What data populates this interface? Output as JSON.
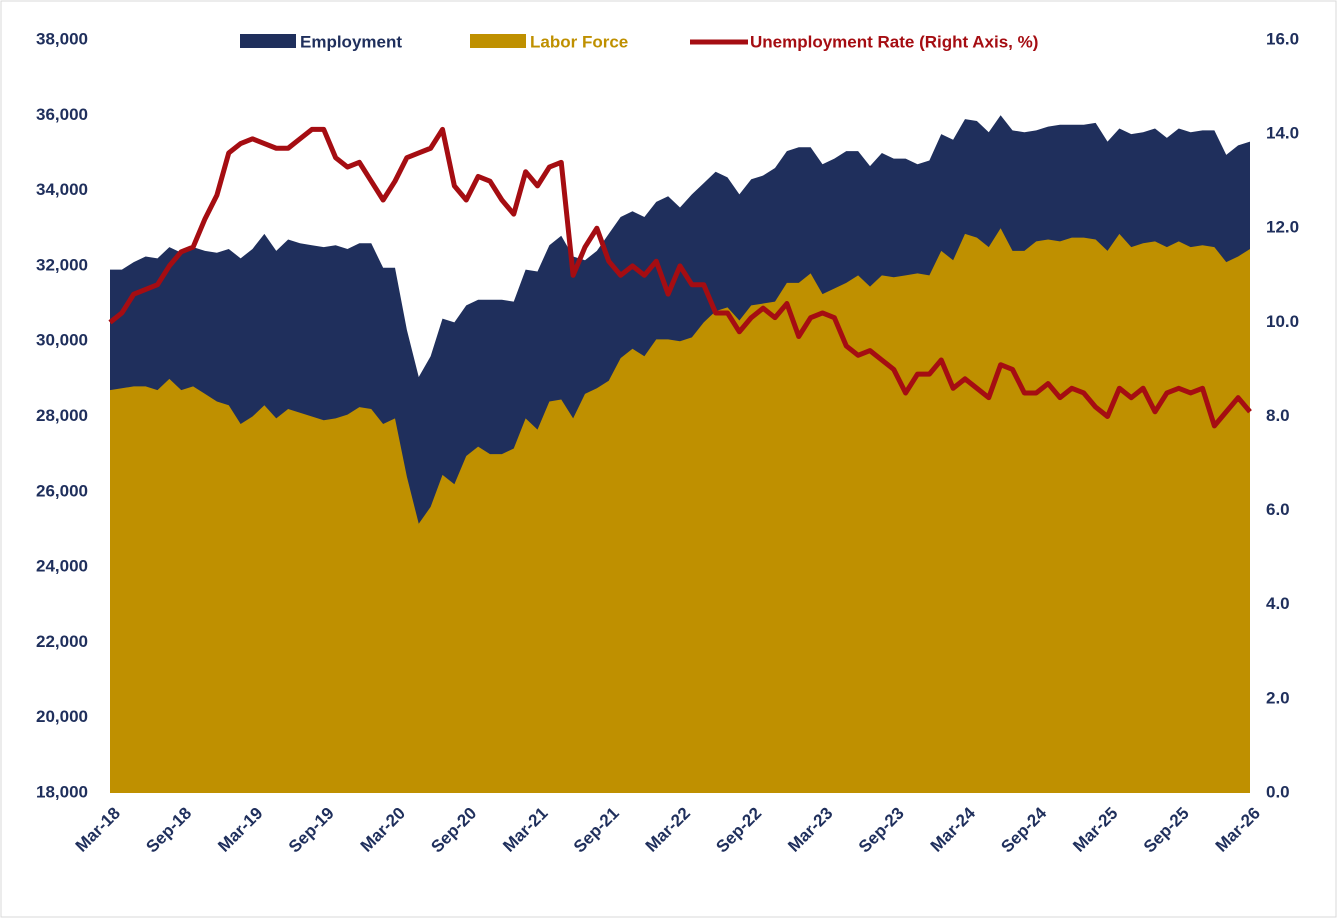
{
  "chart_data": {
    "type": "area-line",
    "categories": [
      "Mar-18",
      null,
      null,
      null,
      null,
      null,
      "Sep-18",
      null,
      null,
      null,
      null,
      null,
      "Mar-19",
      null,
      null,
      null,
      null,
      null,
      "Sep-19",
      null,
      null,
      null,
      null,
      null,
      "Mar-20",
      null,
      null,
      null,
      null,
      null,
      "Sep-20",
      null,
      null,
      null,
      null,
      null,
      "Mar-21",
      null,
      null,
      null,
      null,
      null,
      "Sep-21",
      null,
      null,
      null,
      null,
      null,
      "Mar-22",
      null,
      null,
      null,
      null,
      null,
      "Sep-22",
      null,
      null,
      null,
      null,
      null,
      "Mar-23",
      null,
      null,
      null,
      null,
      null,
      "Sep-23",
      null,
      null,
      null,
      null,
      null,
      "Mar-24",
      null,
      null,
      null,
      null,
      null,
      "Sep-24",
      null,
      null,
      null,
      null,
      null,
      "Mar-25",
      null,
      null,
      null,
      null,
      null,
      "Sep-25",
      null,
      null,
      null,
      null,
      null,
      "Mar-26"
    ],
    "series": [
      {
        "name": "Employment",
        "color": "#1f2f5c",
        "kind": "area",
        "values": [
          31900,
          31900,
          32100,
          32250,
          32200,
          32500,
          32350,
          32500,
          32400,
          32350,
          32450,
          32200,
          32450,
          32850,
          32400,
          32700,
          32600,
          32550,
          32500,
          32550,
          32450,
          32600,
          32600,
          31950,
          31950,
          30300,
          29050,
          29600,
          30600,
          30500,
          30950,
          31100,
          31100,
          31100,
          31050,
          31900,
          31850,
          32550,
          32800,
          32250,
          32150,
          32400,
          32850,
          33300,
          33450,
          33300,
          33700,
          33850,
          33550,
          33900,
          34200,
          34500,
          34350,
          33900,
          34300,
          34400,
          34600,
          35050,
          35150,
          35150,
          34700,
          34850,
          35050,
          35050,
          34650,
          35000,
          34850,
          34850,
          34700,
          34800,
          35500,
          35350,
          35900,
          35850,
          35550,
          36000,
          35600,
          35550,
          35600,
          35700,
          35750,
          35750,
          35750,
          35800,
          35300,
          35650,
          35500,
          35550,
          35650,
          35400,
          35650,
          35550,
          35600,
          35600,
          34950,
          35200,
          35300
        ]
      },
      {
        "name": "Labor Force",
        "color": "#bf9000",
        "kind": "area",
        "values": [
          28700,
          28750,
          28800,
          28800,
          28700,
          29000,
          28700,
          28800,
          28600,
          28400,
          28300,
          27800,
          28000,
          28300,
          27950,
          28200,
          28100,
          28000,
          27900,
          27950,
          28050,
          28250,
          28200,
          27800,
          27950,
          26400,
          25150,
          25600,
          26450,
          26200,
          26950,
          27200,
          27000,
          27000,
          27150,
          27950,
          27650,
          28400,
          28450,
          27950,
          28600,
          28750,
          28950,
          29550,
          29800,
          29600,
          30050,
          30050,
          30000,
          30100,
          30500,
          30800,
          30900,
          30550,
          30950,
          31000,
          31050,
          31550,
          31550,
          31800,
          31250,
          31400,
          31550,
          31750,
          31450,
          31750,
          31700,
          31750,
          31800,
          31750,
          32400,
          32150,
          32850,
          32750,
          32500,
          33000,
          32400,
          32400,
          32650,
          32700,
          32650,
          32750,
          32750,
          32700,
          32400,
          32850,
          32500,
          32600,
          32650,
          32500,
          32650,
          32500,
          32550,
          32500,
          32100,
          32250,
          32450
        ]
      },
      {
        "name": "Unemployment Rate (Right Axis, %)",
        "color": "#a50d12",
        "kind": "line",
        "axis": "y2",
        "values": [
          10.0,
          10.2,
          10.6,
          10.7,
          10.8,
          11.2,
          11.5,
          11.6,
          12.2,
          12.7,
          13.6,
          13.8,
          13.9,
          13.8,
          13.7,
          13.7,
          13.9,
          14.1,
          14.1,
          13.5,
          13.3,
          13.4,
          13.0,
          12.6,
          13.0,
          13.5,
          13.6,
          13.7,
          14.1,
          12.9,
          12.6,
          13.1,
          13.0,
          12.6,
          12.3,
          13.2,
          12.9,
          13.3,
          13.4,
          11.0,
          11.6,
          12.0,
          11.3,
          11.0,
          11.2,
          11.0,
          11.3,
          10.6,
          11.2,
          10.8,
          10.8,
          10.2,
          10.2,
          9.8,
          10.1,
          10.3,
          10.1,
          10.4,
          9.7,
          10.1,
          10.2,
          10.1,
          9.5,
          9.3,
          9.4,
          9.2,
          9.0,
          8.5,
          8.9,
          8.9,
          9.2,
          8.6,
          8.8,
          8.6,
          8.4,
          9.1,
          9.0,
          8.5,
          8.5,
          8.7,
          8.4,
          8.6,
          8.5,
          8.2,
          8.0,
          8.6,
          8.4,
          8.6,
          8.1,
          8.5,
          8.6,
          8.5,
          8.6,
          7.8,
          8.1,
          8.4,
          8.1
        ]
      }
    ],
    "ylim": [
      18000,
      38000
    ],
    "yticks": [
      {
        "value": 18000,
        "label": "18,000"
      },
      {
        "value": 20000,
        "label": "20,000"
      },
      {
        "value": 22000,
        "label": "22,000"
      },
      {
        "value": 24000,
        "label": "24,000"
      },
      {
        "value": 26000,
        "label": "26,000"
      },
      {
        "value": 28000,
        "label": "28,000"
      },
      {
        "value": 30000,
        "label": "30,000"
      },
      {
        "value": 32000,
        "label": "32,000"
      },
      {
        "value": 34000,
        "label": "34,000"
      },
      {
        "value": 36000,
        "label": "36,000"
      },
      {
        "value": 38000,
        "label": "38,000"
      }
    ],
    "y2lim": [
      0,
      16
    ],
    "y2ticks": [
      {
        "value": 0,
        "label": "0.0"
      },
      {
        "value": 2,
        "label": "2.0"
      },
      {
        "value": 4,
        "label": "4.0"
      },
      {
        "value": 6,
        "label": "6.0"
      },
      {
        "value": 8,
        "label": "8.0"
      },
      {
        "value": 10,
        "label": "10.0"
      },
      {
        "value": 12,
        "label": "12.0"
      },
      {
        "value": 14,
        "label": "14.0"
      },
      {
        "value": 16,
        "label": "16.0"
      }
    ],
    "legend": "top",
    "grid": false
  }
}
